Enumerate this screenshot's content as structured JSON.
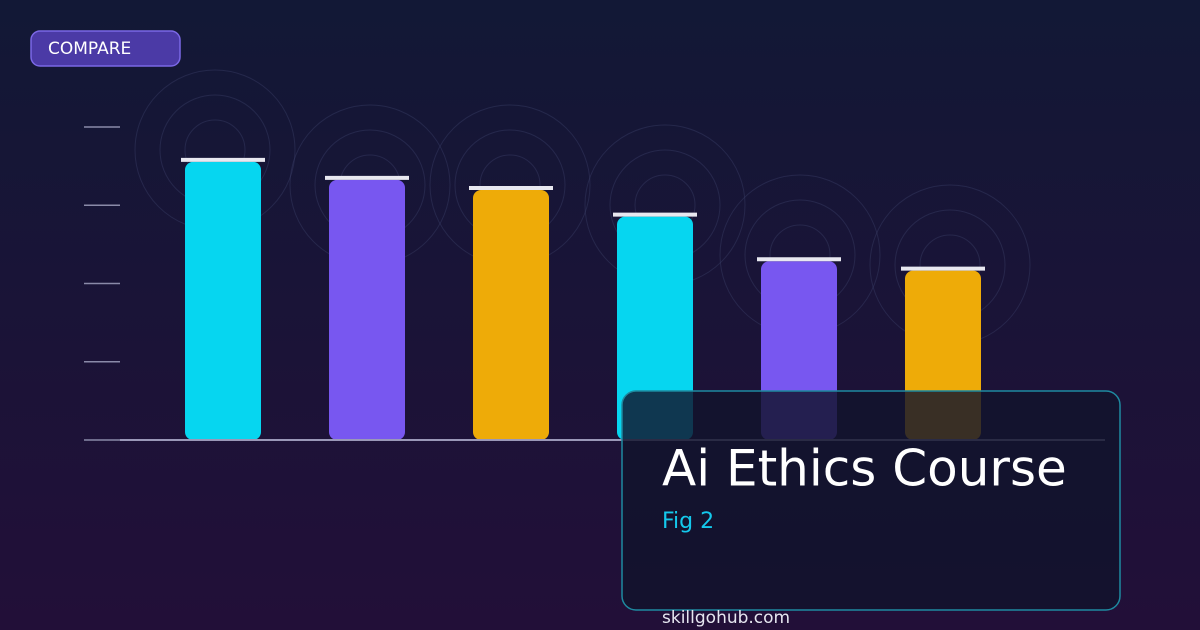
{
  "badge": "COMPARE",
  "chart_data": {
    "type": "bar",
    "title": "Ai Ethics Course",
    "subtitle": "Fig 2",
    "values": [
      3.58,
      3.35,
      3.22,
      2.88,
      2.31,
      2.19
    ],
    "colors": [
      "#06d6f0",
      "#7857f0",
      "#eeab08",
      "#06d6f0",
      "#7857f0",
      "#eeab08"
    ],
    "ylim": [
      0,
      4
    ],
    "yticks": [
      0,
      1,
      2,
      3,
      4
    ]
  },
  "footer": "skillgohub.com"
}
